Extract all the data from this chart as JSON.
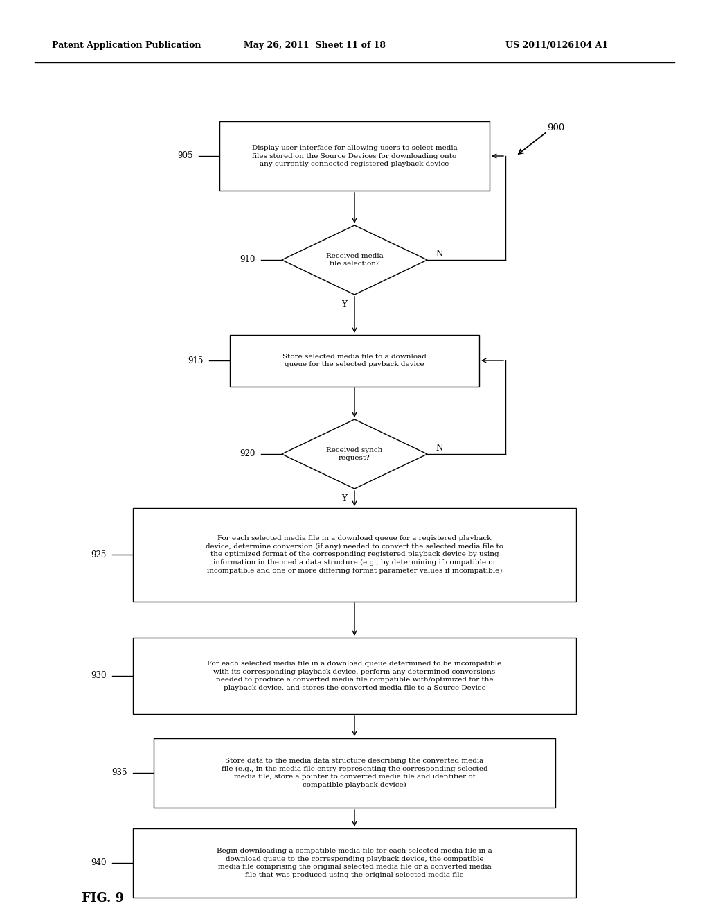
{
  "header_left": "Patent Application Publication",
  "header_mid": "May 26, 2011  Sheet 11 of 18",
  "header_right": "US 2011/0126104 A1",
  "fig_label": "FIG. 9",
  "diagram_label": "900",
  "background_color": "#ffffff",
  "line_color": "#000000",
  "box_905_text": "Display user interface for allowing users to select media\nfiles stored on the Source Devices for downloading onto\nany currently connected registered playback device",
  "box_905_label": "905",
  "diamond_910_text": "Received media\nfile selection?",
  "diamond_910_label": "910",
  "box_915_text": "Store selected media file to a download\nqueue for the selected payback device",
  "box_915_label": "915",
  "diamond_920_text": "Received synch\nrequest?",
  "diamond_920_label": "920",
  "box_925_text": "For each selected media file in a download queue for a registered playback\ndevice, determine conversion (if any) needed to convert the selected media file to\nthe optimized format of the corresponding registered playback device by using\ninformation in the media data structure (e.g., by determining if compatible or\nincompatible and one or more differing format parameter values if incompatible)",
  "box_925_label": "925",
  "box_930_text": "For each selected media file in a download queue determined to be incompatible\nwith its corresponding playback device, perform any determined conversions\nneeded to produce a converted media file compatible with/optimized for the\nplayback device, and stores the converted media file to a Source Device",
  "box_930_label": "930",
  "box_935_text": "Store data to the media data structure describing the converted media\nfile (e.g., in the media file entry representing the corresponding selected\nmedia file, store a pointer to converted media file and identifier of\ncompatible playback device)",
  "box_935_label": "935",
  "box_940_text": "Begin downloading a compatible media file for each selected media file in a\ndownload queue to the corresponding playback device, the compatible\nmedia file comprising the original selected media file or a converted media\nfile that was produced using the original selected media file",
  "box_940_label": "940",
  "fs_header": 9.0,
  "fs_body": 7.5,
  "fs_label": 8.5,
  "fs_fig": 13
}
